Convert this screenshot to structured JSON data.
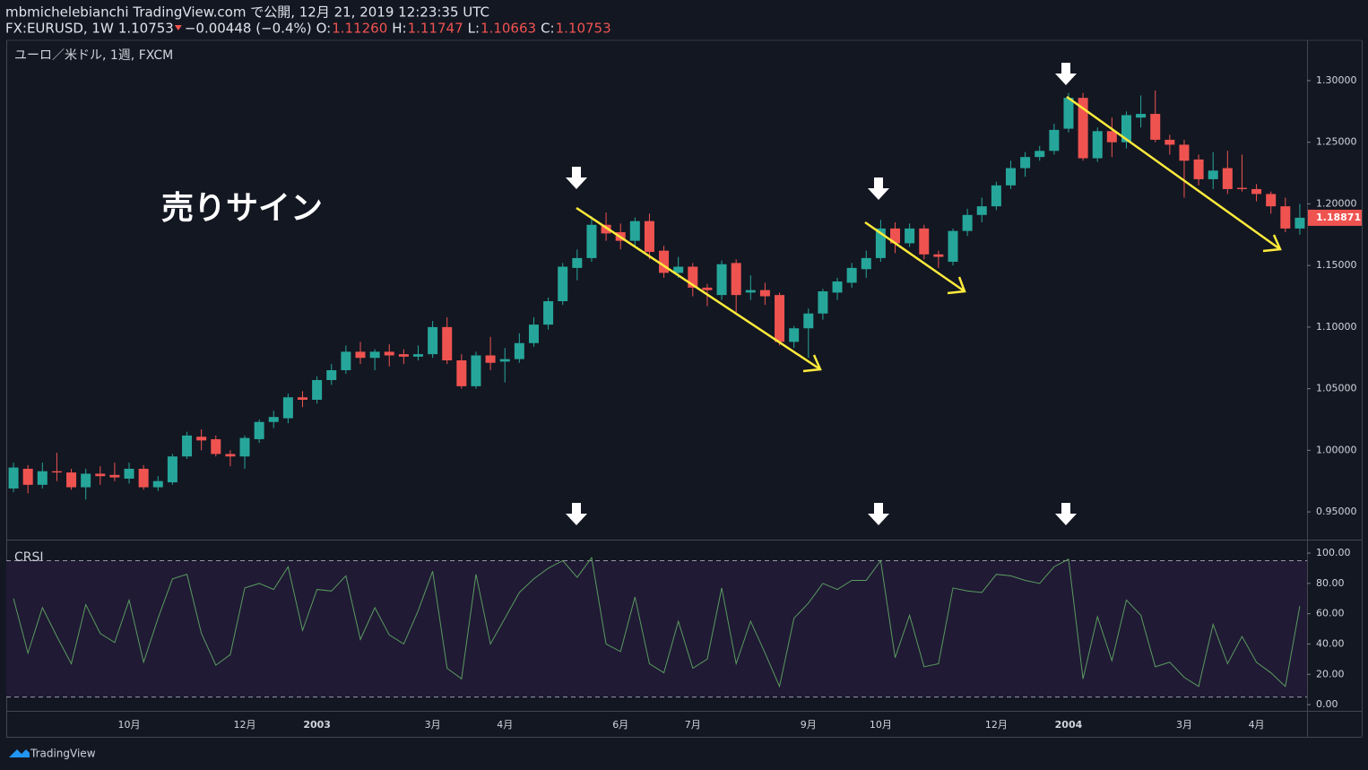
{
  "header": {
    "line1": "mbmichelebianchi TradingView.com で公開, 12月 21, 2019 12:23:35 UTC",
    "symbol": "FX:EURUSD, 1W",
    "price": "1.10753",
    "change": "−0.00448 (−0.4%)",
    "ohlc": [
      {
        "label": "O:",
        "value": "1.11260"
      },
      {
        "label": "H:",
        "value": "1.11747"
      },
      {
        "label": "L:",
        "value": "1.10663"
      },
      {
        "label": "C:",
        "value": "1.10753"
      }
    ],
    "footer": "TradingView"
  },
  "chart_data": [
    {
      "type": "candlestick",
      "pane_label": "ユーロ／米ドル, 1週, FXCM",
      "annotation": "売りサイン",
      "up_color": "#26a69a",
      "down_color": "#ef5350",
      "categories": [
        null,
        null,
        null,
        null,
        null,
        null,
        null,
        null,
        "10月",
        null,
        null,
        null,
        null,
        null,
        null,
        null,
        "12月",
        null,
        null,
        null,
        null,
        "2003",
        null,
        null,
        null,
        null,
        null,
        null,
        null,
        "3月",
        null,
        null,
        null,
        null,
        "4月",
        null,
        null,
        null,
        null,
        null,
        null,
        null,
        "6月",
        null,
        null,
        null,
        null,
        "7月",
        null,
        null,
        null,
        null,
        null,
        null,
        null,
        "9月",
        null,
        null,
        null,
        null,
        "10月",
        null,
        null,
        null,
        null,
        null,
        null,
        null,
        "12月",
        null,
        null,
        null,
        null,
        "2004",
        null,
        null,
        null,
        null,
        null,
        null,
        null,
        "3月",
        null,
        null,
        null,
        null,
        "4月",
        null,
        null,
        null
      ],
      "open": [
        0.969,
        0.985,
        0.972,
        0.983,
        0.982,
        0.97,
        0.981,
        0.98,
        0.977,
        0.985,
        0.97,
        0.974,
        0.995,
        1.011,
        1.009,
        0.997,
        0.995,
        1.009,
        1.023,
        1.026,
        1.043,
        1.041,
        1.057,
        1.065,
        1.08,
        1.075,
        1.08,
        1.078,
        1.076,
        1.078,
        1.1,
        1.073,
        1.052,
        1.077,
        1.072,
        1.074,
        1.087,
        1.102,
        1.121,
        1.148,
        1.156,
        1.183,
        1.177,
        1.17,
        1.186,
        1.162,
        1.144,
        1.149,
        1.132,
        1.126,
        1.152,
        1.128,
        1.13,
        1.126,
        1.088,
        1.099,
        1.111,
        1.128,
        1.136,
        1.147,
        1.156,
        1.18,
        1.168,
        1.18,
        1.159,
        1.153,
        1.178,
        1.191,
        1.198,
        1.215,
        1.229,
        1.238,
        1.243,
        1.261,
        1.286,
        1.237,
        1.259,
        1.25,
        1.27,
        1.273,
        1.252,
        1.248,
        1.236,
        1.22,
        1.229,
        1.213,
        1.212,
        1.208,
        1.198,
        1.18
      ],
      "high": [
        0.99,
        0.988,
        0.99,
        0.998,
        0.985,
        0.985,
        0.987,
        0.99,
        0.99,
        0.988,
        0.979,
        0.997,
        1.015,
        1.017,
        1.012,
        1.0,
        1.012,
        1.025,
        1.032,
        1.046,
        1.048,
        1.06,
        1.07,
        1.085,
        1.088,
        1.082,
        1.086,
        1.082,
        1.085,
        1.105,
        1.108,
        1.078,
        1.08,
        1.092,
        1.083,
        1.095,
        1.108,
        1.124,
        1.152,
        1.163,
        1.19,
        1.193,
        1.184,
        1.189,
        1.192,
        1.166,
        1.157,
        1.152,
        1.135,
        1.154,
        1.155,
        1.142,
        1.136,
        1.128,
        1.101,
        1.115,
        1.131,
        1.14,
        1.152,
        1.162,
        1.187,
        1.185,
        1.184,
        1.183,
        1.162,
        1.18,
        1.196,
        1.205,
        1.218,
        1.235,
        1.242,
        1.247,
        1.265,
        1.29,
        1.29,
        1.262,
        1.27,
        1.275,
        1.288,
        1.292,
        1.256,
        1.252,
        1.24,
        1.242,
        1.243,
        1.24,
        1.216,
        1.21,
        1.205,
        1.2
      ],
      "low": [
        0.966,
        0.965,
        0.969,
        0.975,
        0.968,
        0.96,
        0.972,
        0.975,
        0.973,
        0.968,
        0.967,
        0.972,
        0.993,
        1.0,
        0.995,
        0.987,
        0.985,
        1.006,
        1.018,
        1.022,
        1.035,
        1.038,
        1.053,
        1.062,
        1.07,
        1.065,
        1.068,
        1.07,
        1.073,
        1.075,
        1.07,
        1.05,
        1.05,
        1.065,
        1.055,
        1.071,
        1.084,
        1.098,
        1.118,
        1.138,
        1.153,
        1.17,
        1.163,
        1.165,
        1.155,
        1.14,
        1.14,
        1.125,
        1.117,
        1.122,
        1.112,
        1.122,
        1.118,
        1.085,
        1.083,
        1.075,
        1.106,
        1.122,
        1.132,
        1.14,
        1.153,
        1.16,
        1.165,
        1.155,
        1.148,
        1.15,
        1.174,
        1.185,
        1.195,
        1.212,
        1.222,
        1.235,
        1.24,
        1.258,
        1.235,
        1.234,
        1.238,
        1.245,
        1.262,
        1.25,
        1.24,
        1.205,
        1.215,
        1.212,
        1.208,
        1.21,
        1.202,
        1.192,
        1.177,
        1.175
      ],
      "close": [
        0.986,
        0.972,
        0.983,
        0.982,
        0.97,
        0.981,
        0.979,
        0.978,
        0.985,
        0.97,
        0.975,
        0.995,
        1.012,
        1.008,
        0.997,
        0.995,
        1.01,
        1.023,
        1.027,
        1.043,
        1.041,
        1.057,
        1.065,
        1.08,
        1.075,
        1.08,
        1.077,
        1.076,
        1.078,
        1.1,
        1.073,
        1.052,
        1.077,
        1.071,
        1.074,
        1.087,
        1.102,
        1.121,
        1.149,
        1.156,
        1.183,
        1.176,
        1.17,
        1.186,
        1.161,
        1.144,
        1.149,
        1.132,
        1.13,
        1.151,
        1.126,
        1.13,
        1.125,
        1.088,
        1.099,
        1.111,
        1.129,
        1.137,
        1.148,
        1.156,
        1.18,
        1.168,
        1.18,
        1.159,
        1.157,
        1.178,
        1.191,
        1.198,
        1.215,
        1.229,
        1.238,
        1.243,
        1.26,
        1.286,
        1.237,
        1.259,
        1.25,
        1.272,
        1.273,
        1.252,
        1.248,
        1.235,
        1.22,
        1.227,
        1.212,
        1.212,
        1.208,
        1.198,
        1.18,
        1.18871
      ],
      "last_price": 1.18871,
      "ylim": [
        0.9275,
        1.3327
      ],
      "yticks": [
        {
          "value": 0.95,
          "label": "0.95000"
        },
        {
          "value": 1.0,
          "label": "1.00000"
        },
        {
          "value": 1.05,
          "label": "1.05000"
        },
        {
          "value": 1.1,
          "label": "1.10000"
        },
        {
          "value": 1.15,
          "label": "1.15000"
        },
        {
          "value": 1.2,
          "label": "1.20000"
        },
        {
          "value": 1.25,
          "label": "1.25000"
        },
        {
          "value": 1.3,
          "label": "1.30000"
        }
      ]
    },
    {
      "type": "line",
      "title": "CRSI",
      "color": "#5a9a5e",
      "bands": [
        5,
        95
      ],
      "band_fill": "#201a35",
      "values": [
        70,
        34,
        64,
        45,
        27,
        66,
        47,
        41,
        69,
        28,
        57,
        83,
        86,
        47,
        26,
        33,
        77,
        80,
        76,
        91,
        49,
        76,
        75,
        85,
        43,
        64,
        46,
        40,
        62,
        88,
        24,
        17,
        86,
        40,
        57,
        74,
        83,
        90,
        95,
        84,
        97,
        40,
        35,
        71,
        27,
        21,
        55,
        24,
        30,
        77,
        27,
        55,
        34,
        12,
        57,
        67,
        80,
        76,
        82,
        82,
        95,
        31,
        59,
        25,
        27,
        77,
        75,
        74,
        86,
        85,
        82,
        80,
        91,
        96,
        17,
        58,
        29,
        69,
        59,
        25,
        28,
        18,
        12,
        53,
        27,
        45,
        28,
        21,
        12,
        65
      ],
      "ylim": [
        -4.1,
        108.3
      ],
      "yticks": [
        {
          "value": 0,
          "label": "0.00"
        },
        {
          "value": 20,
          "label": "20.00"
        },
        {
          "value": 40,
          "label": "40.00"
        },
        {
          "value": 60,
          "label": "60.00"
        },
        {
          "value": 80,
          "label": "80.00"
        },
        {
          "value": 100,
          "label": "100.00"
        }
      ]
    }
  ]
}
